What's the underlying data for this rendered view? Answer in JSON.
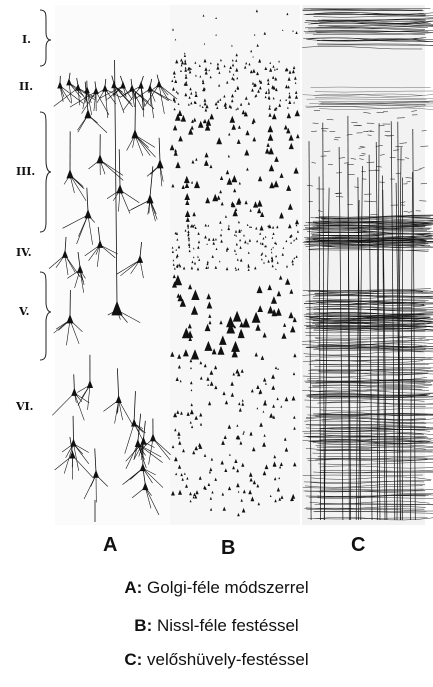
{
  "layers": [
    {
      "id": "I",
      "label": "I."
    },
    {
      "id": "II",
      "label": "II."
    },
    {
      "id": "III",
      "label": "III."
    },
    {
      "id": "IV",
      "label": "IV."
    },
    {
      "id": "V",
      "label": "V."
    },
    {
      "id": "VI",
      "label": "VI."
    }
  ],
  "columns": [
    {
      "id": "A",
      "label": "A"
    },
    {
      "id": "B",
      "label": "B"
    },
    {
      "id": "C",
      "label": "C"
    }
  ],
  "legend": [
    {
      "key": "A:",
      "text": " Golgi-féle módszerrel"
    },
    {
      "key": "B:",
      "text": " Nissl-féle festéssel"
    },
    {
      "key": "C:",
      "text": " velőshüvely-festéssel"
    }
  ],
  "colors": {
    "ink": "#111111",
    "paper": "#ffffff",
    "panel_bg": "#fafafa"
  }
}
